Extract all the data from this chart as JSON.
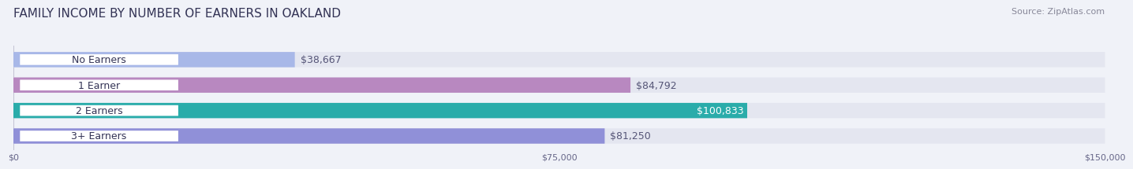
{
  "title": "FAMILY INCOME BY NUMBER OF EARNERS IN OAKLAND",
  "source": "Source: ZipAtlas.com",
  "categories": [
    "No Earners",
    "1 Earner",
    "2 Earners",
    "3+ Earners"
  ],
  "values": [
    38667,
    84792,
    100833,
    81250
  ],
  "bar_colors": [
    "#a8b8e8",
    "#b888c0",
    "#2aacaa",
    "#9090d8"
  ],
  "bar_bg_color": "#e4e6f0",
  "label_colors": [
    "#555577",
    "#555577",
    "#ffffff",
    "#555577"
  ],
  "value_labels": [
    "$38,667",
    "$84,792",
    "$100,833",
    "$81,250"
  ],
  "xmax": 150000,
  "xticks": [
    0,
    75000,
    150000
  ],
  "xtick_labels": [
    "$0",
    "$75,000",
    "$150,000"
  ],
  "title_fontsize": 11,
  "source_fontsize": 8,
  "bar_label_fontsize": 9,
  "value_label_fontsize": 9,
  "background_color": "#f0f2f8"
}
